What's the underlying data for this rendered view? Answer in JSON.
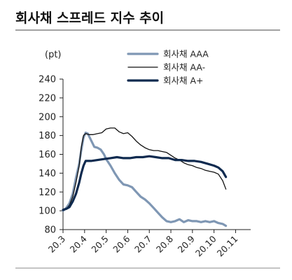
{
  "chart_data": {
    "type": "line",
    "title": "회사채 스프레드 지수 추이",
    "unit": "(pt)",
    "ylim": [
      80,
      240
    ],
    "y_ticks": [
      80,
      100,
      120,
      140,
      160,
      180,
      200,
      220,
      240
    ],
    "x_ticks": [
      "20.3",
      "20.4",
      "20.5",
      "20.6",
      "20.7",
      "20.8",
      "20.9",
      "20.10",
      "20.11"
    ],
    "xlim": [
      0,
      8.7
    ],
    "grid": false,
    "legend_position": "top-right",
    "series": [
      {
        "name": "회사채 AAA",
        "color": "#7f97b4",
        "style": "thick",
        "points": [
          [
            0,
            100
          ],
          [
            0.15,
            103
          ],
          [
            0.3,
            108
          ],
          [
            0.45,
            118
          ],
          [
            0.6,
            135
          ],
          [
            0.75,
            150
          ],
          [
            0.85,
            165
          ],
          [
            0.95,
            178
          ],
          [
            1.05,
            183
          ],
          [
            1.15,
            182
          ],
          [
            1.3,
            175
          ],
          [
            1.45,
            168
          ],
          [
            1.6,
            167
          ],
          [
            1.75,
            165
          ],
          [
            1.9,
            160
          ],
          [
            2.0,
            155
          ],
          [
            2.2,
            148
          ],
          [
            2.4,
            140
          ],
          [
            2.6,
            133
          ],
          [
            2.8,
            128
          ],
          [
            3.0,
            127
          ],
          [
            3.2,
            125
          ],
          [
            3.4,
            120
          ],
          [
            3.6,
            115
          ],
          [
            3.8,
            112
          ],
          [
            4.0,
            108
          ],
          [
            4.2,
            103
          ],
          [
            4.4,
            98
          ],
          [
            4.6,
            93
          ],
          [
            4.8,
            89
          ],
          [
            5.0,
            88
          ],
          [
            5.2,
            89
          ],
          [
            5.4,
            91
          ],
          [
            5.6,
            88
          ],
          [
            5.8,
            90
          ],
          [
            6.0,
            89
          ],
          [
            6.2,
            89
          ],
          [
            6.4,
            88
          ],
          [
            6.6,
            89
          ],
          [
            6.8,
            88
          ],
          [
            7.0,
            89
          ],
          [
            7.2,
            87
          ],
          [
            7.4,
            86
          ],
          [
            7.55,
            84
          ]
        ]
      },
      {
        "name": "회사채 AA-",
        "color": "#111111",
        "style": "thin",
        "points": [
          [
            0,
            100
          ],
          [
            0.15,
            102
          ],
          [
            0.3,
            106
          ],
          [
            0.45,
            115
          ],
          [
            0.6,
            130
          ],
          [
            0.75,
            148
          ],
          [
            0.85,
            168
          ],
          [
            0.95,
            180
          ],
          [
            1.05,
            182
          ],
          [
            1.2,
            181
          ],
          [
            1.4,
            181
          ],
          [
            1.6,
            182
          ],
          [
            1.8,
            183
          ],
          [
            2.0,
            187
          ],
          [
            2.2,
            188
          ],
          [
            2.4,
            188
          ],
          [
            2.6,
            184
          ],
          [
            2.8,
            182
          ],
          [
            3.0,
            183
          ],
          [
            3.2,
            179
          ],
          [
            3.4,
            174
          ],
          [
            3.6,
            170
          ],
          [
            3.8,
            167
          ],
          [
            4.0,
            165
          ],
          [
            4.2,
            164
          ],
          [
            4.4,
            164
          ],
          [
            4.6,
            163
          ],
          [
            4.8,
            162
          ],
          [
            5.0,
            159
          ],
          [
            5.2,
            156
          ],
          [
            5.4,
            154
          ],
          [
            5.6,
            151
          ],
          [
            5.8,
            149
          ],
          [
            6.0,
            148
          ],
          [
            6.2,
            146
          ],
          [
            6.4,
            145
          ],
          [
            6.6,
            143
          ],
          [
            6.8,
            142
          ],
          [
            7.0,
            141
          ],
          [
            7.2,
            139
          ],
          [
            7.4,
            132
          ],
          [
            7.55,
            123
          ]
        ]
      },
      {
        "name": "회사채 A+",
        "color": "#0f2a4f",
        "style": "bold",
        "points": [
          [
            0,
            101
          ],
          [
            0.15,
            102
          ],
          [
            0.3,
            104
          ],
          [
            0.45,
            110
          ],
          [
            0.6,
            118
          ],
          [
            0.75,
            130
          ],
          [
            0.85,
            140
          ],
          [
            0.95,
            148
          ],
          [
            1.05,
            153
          ],
          [
            1.3,
            153
          ],
          [
            1.6,
            154
          ],
          [
            1.9,
            155
          ],
          [
            2.2,
            156
          ],
          [
            2.5,
            157
          ],
          [
            2.8,
            156
          ],
          [
            3.1,
            156
          ],
          [
            3.4,
            157
          ],
          [
            3.7,
            157
          ],
          [
            4.0,
            158
          ],
          [
            4.3,
            157
          ],
          [
            4.6,
            156
          ],
          [
            4.9,
            156
          ],
          [
            5.2,
            154
          ],
          [
            5.5,
            154
          ],
          [
            5.8,
            153
          ],
          [
            6.1,
            153
          ],
          [
            6.4,
            152
          ],
          [
            6.7,
            150
          ],
          [
            7.0,
            148
          ],
          [
            7.2,
            146
          ],
          [
            7.4,
            142
          ],
          [
            7.55,
            136
          ]
        ]
      }
    ]
  }
}
